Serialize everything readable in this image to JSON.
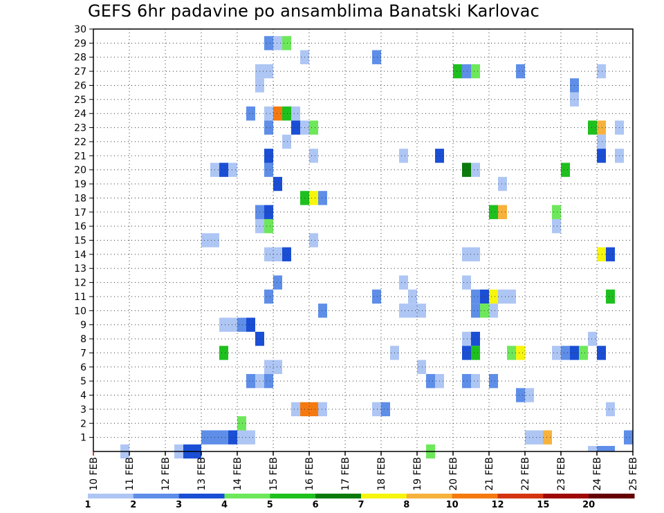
{
  "chart_data": {
    "type": "heatmap",
    "title": "GEFS 6hr padavine po ansamblima Banatski Karlovac",
    "xlabel": "",
    "ylabel": "",
    "x_tick_labels": [
      "10 FEB",
      "11 FEB",
      "12 FEB",
      "13 FEB",
      "14 FEB",
      "15 FEB",
      "16 FEB",
      "17 FEB",
      "18 FEB",
      "19 FEB",
      "20 FEB",
      "21 FEB",
      "22 FEB",
      "23 FEB",
      "24 FEB",
      "25 FEB"
    ],
    "x_range_days": [
      0,
      15
    ],
    "y_tick_labels": [
      "1",
      "2",
      "3",
      "4",
      "5",
      "6",
      "7",
      "8",
      "9",
      "10",
      "11",
      "12",
      "13",
      "14",
      "15",
      "16",
      "17",
      "18",
      "19",
      "20",
      "21",
      "22",
      "23",
      "24",
      "25",
      "26",
      "27",
      "28",
      "29",
      "30"
    ],
    "y_range": [
      0,
      30
    ],
    "grid": true,
    "colorbar": {
      "labels": [
        "1",
        "2",
        "3",
        "4",
        "5",
        "6",
        "7",
        "8",
        "10",
        "12",
        "15",
        "20"
      ],
      "colors": [
        "#aec6f4",
        "#5e8ee8",
        "#1a4ed4",
        "#6de85a",
        "#1ec01e",
        "#0a7a0a",
        "#f6f50c",
        "#f6b23c",
        "#f47a10",
        "#d43410",
        "#a00808",
        "#640000"
      ]
    },
    "cells": [
      {
        "d": 0.75,
        "m": 0,
        "c": 0
      },
      {
        "d": 2.25,
        "m": 0,
        "c": 0
      },
      {
        "d": 2.5,
        "m": 0,
        "c": 2
      },
      {
        "d": 2.75,
        "m": 0,
        "c": 2
      },
      {
        "d": 3.0,
        "m": 1,
        "c": 1
      },
      {
        "d": 3.25,
        "m": 1,
        "c": 1
      },
      {
        "d": 3.5,
        "m": 1,
        "c": 1
      },
      {
        "d": 3.75,
        "m": 1,
        "c": 2
      },
      {
        "d": 4.0,
        "m": 1,
        "c": 0
      },
      {
        "d": 4.25,
        "m": 1,
        "c": 0
      },
      {
        "d": 3.0,
        "m": 15,
        "c": 0
      },
      {
        "d": 3.25,
        "m": 15,
        "c": 0
      },
      {
        "d": 3.25,
        "m": 20,
        "c": 0
      },
      {
        "d": 3.5,
        "m": 20,
        "c": 2
      },
      {
        "d": 3.75,
        "m": 20,
        "c": 0
      },
      {
        "d": 3.5,
        "m": 7,
        "c": 4
      },
      {
        "d": 3.5,
        "m": 9,
        "c": 0
      },
      {
        "d": 3.75,
        "m": 9,
        "c": 0
      },
      {
        "d": 4.0,
        "m": 9,
        "c": 1
      },
      {
        "d": 4.25,
        "m": 9,
        "c": 2
      },
      {
        "d": 4.0,
        "m": 2,
        "c": 3
      },
      {
        "d": 4.25,
        "m": 5,
        "c": 1
      },
      {
        "d": 4.5,
        "m": 5,
        "c": 0
      },
      {
        "d": 4.75,
        "m": 5,
        "c": 1
      },
      {
        "d": 4.25,
        "m": 24,
        "c": 1
      },
      {
        "d": 4.5,
        "m": 17,
        "c": 1
      },
      {
        "d": 4.75,
        "m": 17,
        "c": 2
      },
      {
        "d": 4.5,
        "m": 8,
        "c": 2
      },
      {
        "d": 4.5,
        "m": 16,
        "c": 0
      },
      {
        "d": 4.75,
        "m": 16,
        "c": 3
      },
      {
        "d": 4.5,
        "m": 26,
        "c": 0
      },
      {
        "d": 4.5,
        "m": 27,
        "c": 0
      },
      {
        "d": 4.75,
        "m": 27,
        "c": 0
      },
      {
        "d": 4.75,
        "m": 29,
        "c": 1
      },
      {
        "d": 5.0,
        "m": 29,
        "c": 0
      },
      {
        "d": 5.25,
        "m": 29,
        "c": 3
      },
      {
        "d": 4.75,
        "m": 24,
        "c": 0
      },
      {
        "d": 5.0,
        "m": 24,
        "c": 8
      },
      {
        "d": 5.25,
        "m": 24,
        "c": 4
      },
      {
        "d": 5.5,
        "m": 24,
        "c": 0
      },
      {
        "d": 4.75,
        "m": 23,
        "c": 1
      },
      {
        "d": 5.25,
        "m": 22,
        "c": 0
      },
      {
        "d": 4.75,
        "m": 21,
        "c": 2
      },
      {
        "d": 4.75,
        "m": 20,
        "c": 1
      },
      {
        "d": 5.0,
        "m": 19,
        "c": 2
      },
      {
        "d": 4.75,
        "m": 14,
        "c": 0
      },
      {
        "d": 5.0,
        "m": 14,
        "c": 0
      },
      {
        "d": 5.25,
        "m": 14,
        "c": 2
      },
      {
        "d": 5.0,
        "m": 12,
        "c": 1
      },
      {
        "d": 4.75,
        "m": 11,
        "c": 1
      },
      {
        "d": 4.75,
        "m": 6,
        "c": 0
      },
      {
        "d": 5.0,
        "m": 6,
        "c": 0
      },
      {
        "d": 5.5,
        "m": 3,
        "c": 0
      },
      {
        "d": 5.75,
        "m": 3,
        "c": 8
      },
      {
        "d": 6.0,
        "m": 3,
        "c": 8
      },
      {
        "d": 6.25,
        "m": 3,
        "c": 0
      },
      {
        "d": 5.5,
        "m": 23,
        "c": 2
      },
      {
        "d": 5.75,
        "m": 23,
        "c": 0
      },
      {
        "d": 6.0,
        "m": 23,
        "c": 3
      },
      {
        "d": 5.75,
        "m": 28,
        "c": 0
      },
      {
        "d": 5.75,
        "m": 18,
        "c": 4
      },
      {
        "d": 6.0,
        "m": 18,
        "c": 6
      },
      {
        "d": 6.25,
        "m": 18,
        "c": 1
      },
      {
        "d": 6.0,
        "m": 21,
        "c": 0
      },
      {
        "d": 6.0,
        "m": 15,
        "c": 0
      },
      {
        "d": 6.25,
        "m": 10,
        "c": 1
      },
      {
        "d": 7.75,
        "m": 3,
        "c": 0
      },
      {
        "d": 8.0,
        "m": 3,
        "c": 1
      },
      {
        "d": 7.75,
        "m": 11,
        "c": 1
      },
      {
        "d": 7.75,
        "m": 28,
        "c": 1
      },
      {
        "d": 8.25,
        "m": 7,
        "c": 0
      },
      {
        "d": 8.5,
        "m": 10,
        "c": 0
      },
      {
        "d": 8.5,
        "m": 12,
        "c": 0
      },
      {
        "d": 8.5,
        "m": 21,
        "c": 0
      },
      {
        "d": 8.75,
        "m": 11,
        "c": 0
      },
      {
        "d": 8.75,
        "m": 10,
        "c": 0
      },
      {
        "d": 9.0,
        "m": 10,
        "c": 0
      },
      {
        "d": 9.0,
        "m": 6,
        "c": 0
      },
      {
        "d": 9.25,
        "m": 5,
        "c": 1
      },
      {
        "d": 9.5,
        "m": 5,
        "c": 0
      },
      {
        "d": 9.25,
        "m": 0,
        "c": 3
      },
      {
        "d": 9.5,
        "m": 21,
        "c": 2
      },
      {
        "d": 10.0,
        "m": 27,
        "c": 4
      },
      {
        "d": 10.25,
        "m": 27,
        "c": 1
      },
      {
        "d": 10.5,
        "m": 27,
        "c": 3
      },
      {
        "d": 10.25,
        "m": 20,
        "c": 5
      },
      {
        "d": 10.5,
        "m": 20,
        "c": 0
      },
      {
        "d": 10.25,
        "m": 14,
        "c": 0
      },
      {
        "d": 10.5,
        "m": 14,
        "c": 0
      },
      {
        "d": 10.25,
        "m": 12,
        "c": 0
      },
      {
        "d": 10.5,
        "m": 11,
        "c": 1
      },
      {
        "d": 10.75,
        "m": 11,
        "c": 2
      },
      {
        "d": 11.0,
        "m": 11,
        "c": 6
      },
      {
        "d": 11.25,
        "m": 11,
        "c": 0
      },
      {
        "d": 11.5,
        "m": 11,
        "c": 0
      },
      {
        "d": 10.5,
        "m": 10,
        "c": 1
      },
      {
        "d": 10.75,
        "m": 10,
        "c": 3
      },
      {
        "d": 11.0,
        "m": 10,
        "c": 0
      },
      {
        "d": 10.25,
        "m": 8,
        "c": 0
      },
      {
        "d": 10.5,
        "m": 8,
        "c": 2
      },
      {
        "d": 10.25,
        "m": 7,
        "c": 2
      },
      {
        "d": 10.5,
        "m": 7,
        "c": 4
      },
      {
        "d": 10.25,
        "m": 5,
        "c": 1
      },
      {
        "d": 10.5,
        "m": 5,
        "c": 0
      },
      {
        "d": 11.0,
        "m": 5,
        "c": 1
      },
      {
        "d": 11.0,
        "m": 17,
        "c": 4
      },
      {
        "d": 11.25,
        "m": 17,
        "c": 7
      },
      {
        "d": 11.25,
        "m": 19,
        "c": 0
      },
      {
        "d": 11.5,
        "m": 7,
        "c": 3
      },
      {
        "d": 11.75,
        "m": 7,
        "c": 6
      },
      {
        "d": 11.75,
        "m": 4,
        "c": 1
      },
      {
        "d": 12.0,
        "m": 4,
        "c": 0
      },
      {
        "d": 12.0,
        "m": 1,
        "c": 0
      },
      {
        "d": 12.25,
        "m": 1,
        "c": 0
      },
      {
        "d": 12.5,
        "m": 1,
        "c": 7
      },
      {
        "d": 11.75,
        "m": 27,
        "c": 1
      },
      {
        "d": 12.75,
        "m": 17,
        "c": 3
      },
      {
        "d": 12.75,
        "m": 16,
        "c": 0
      },
      {
        "d": 12.75,
        "m": 7,
        "c": 0
      },
      {
        "d": 13.0,
        "m": 7,
        "c": 1
      },
      {
        "d": 13.25,
        "m": 7,
        "c": 2
      },
      {
        "d": 13.5,
        "m": 7,
        "c": 3
      },
      {
        "d": 13.0,
        "m": 20,
        "c": 4
      },
      {
        "d": 13.25,
        "m": 26,
        "c": 1
      },
      {
        "d": 13.25,
        "m": 25,
        "c": 0
      },
      {
        "d": 13.75,
        "m": 8,
        "c": 0
      },
      {
        "d": 13.75,
        "m": 23,
        "c": 4
      },
      {
        "d": 14.0,
        "m": 23,
        "c": 7
      },
      {
        "d": 14.0,
        "m": 22,
        "c": 0
      },
      {
        "d": 14.0,
        "m": 21,
        "c": 2
      },
      {
        "d": 14.5,
        "m": 21,
        "c": 0
      },
      {
        "d": 14.0,
        "m": 27,
        "c": 0
      },
      {
        "d": 14.0,
        "m": 14,
        "c": 6
      },
      {
        "d": 14.25,
        "m": 14,
        "c": 2
      },
      {
        "d": 14.25,
        "m": 11,
        "c": 4
      },
      {
        "d": 14.0,
        "m": 7,
        "c": 2
      },
      {
        "d": 14.25,
        "m": 3,
        "c": 0
      },
      {
        "d": 14.5,
        "m": 23,
        "c": 0
      },
      {
        "d": 14.75,
        "m": 1,
        "c": 1
      },
      {
        "d": 13.75,
        "m": -1,
        "c": 0
      },
      {
        "d": 14.0,
        "m": -1,
        "c": 1
      },
      {
        "d": 14.25,
        "m": -1,
        "c": 1
      }
    ]
  }
}
